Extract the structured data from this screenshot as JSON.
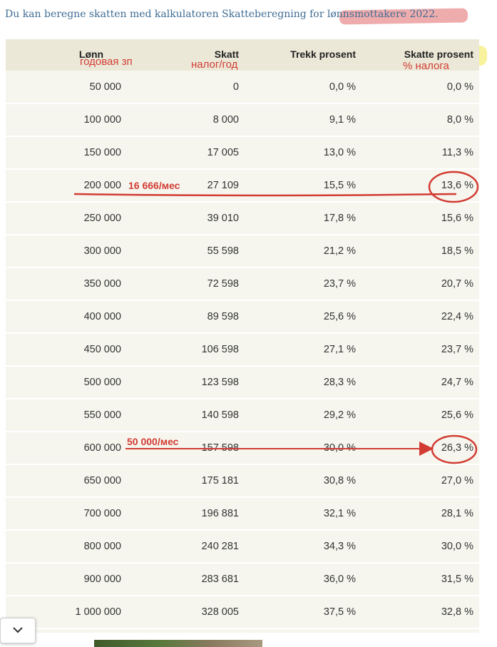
{
  "intro_text": "Du kan beregne skatten med kalkulatoren Skatteberegning for lønnsmottakere 2022.",
  "table": {
    "headers": [
      "Lønn",
      "Skatt",
      "Trekk prosent",
      "Skatte prosent"
    ],
    "rows": [
      [
        "50 000",
        "0",
        "0,0 %",
        "0,0 %"
      ],
      [
        "100 000",
        "8 000",
        "9,1 %",
        "8,0 %"
      ],
      [
        "150 000",
        "17 005",
        "13,0 %",
        "11,3 %"
      ],
      [
        "200 000",
        "27 109",
        "15,5 %",
        "13,6 %"
      ],
      [
        "250 000",
        "39 010",
        "17,8 %",
        "15,6 %"
      ],
      [
        "300 000",
        "55 598",
        "21,2 %",
        "18,5 %"
      ],
      [
        "350 000",
        "72 598",
        "23,7 %",
        "20,7 %"
      ],
      [
        "400 000",
        "89 598",
        "25,6 %",
        "22,4 %"
      ],
      [
        "450 000",
        "106 598",
        "27,1 %",
        "23,7 %"
      ],
      [
        "500 000",
        "123 598",
        "28,3 %",
        "24,7 %"
      ],
      [
        "550 000",
        "140 598",
        "29,2 %",
        "25,6 %"
      ],
      [
        "600 000",
        "157 598",
        "30,0 %",
        "26,3 %"
      ],
      [
        "650 000",
        "175 181",
        "30,8 %",
        "27,0 %"
      ],
      [
        "700 000",
        "196 881",
        "32,1 %",
        "28,1 %"
      ],
      [
        "800 000",
        "240 281",
        "34,3 %",
        "30,0 %"
      ],
      [
        "900 000",
        "283 681",
        "36,0 %",
        "31,5 %"
      ],
      [
        "1 000 000",
        "328 005",
        "37,5 %",
        "32,8 %"
      ]
    ]
  },
  "annotations": {
    "salary_label": "годовая зп",
    "tax_label": "налог/год",
    "percent_label": "% налога",
    "monthly_200k": "16 666/мес",
    "monthly_600k": "50 000/мес"
  },
  "colors": {
    "link": "#3f6c94",
    "annotation_red": "#d23c33",
    "header_bg": "#ece8d8",
    "table_bg": "#f6f6ef",
    "highlight_yellow": "#f6f08a",
    "highlight_pink": "#ea9090"
  },
  "icons": {
    "scroll_button": "chevron-down-icon"
  }
}
